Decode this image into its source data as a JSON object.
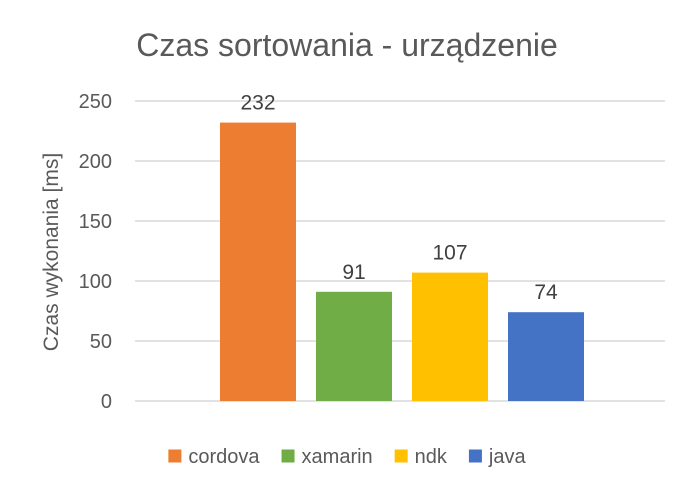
{
  "chart_data": {
    "type": "bar",
    "title": "Czas sortowania - urządzenie",
    "xlabel": "",
    "ylabel": "Czas wykonania [ms]",
    "ylim": [
      0,
      250
    ],
    "yticks": [
      0,
      50,
      100,
      150,
      200,
      250
    ],
    "grid": true,
    "legend_position": "bottom",
    "series": [
      {
        "name": "cordova",
        "values": [
          232
        ],
        "color": "#ED7D31"
      },
      {
        "name": "xamarin",
        "values": [
          91
        ],
        "color": "#70AD47"
      },
      {
        "name": "ndk",
        "values": [
          107
        ],
        "color": "#FFC000"
      },
      {
        "name": "java",
        "values": [
          74
        ],
        "color": "#4472C4"
      }
    ]
  }
}
